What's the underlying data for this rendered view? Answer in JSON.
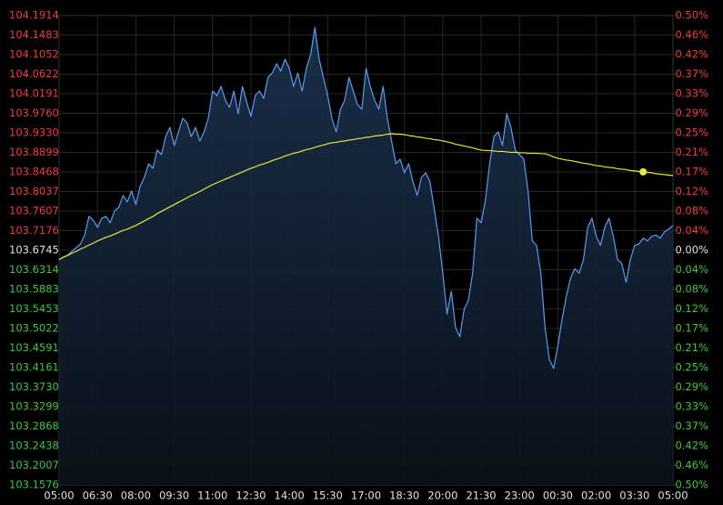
{
  "chart_data": {
    "type": "line",
    "categories": [
      "05:00",
      null,
      null,
      null,
      null,
      null,
      null,
      null,
      null,
      "06:30",
      null,
      null,
      null,
      null,
      null,
      null,
      null,
      null,
      "08:00",
      null,
      null,
      null,
      null,
      null,
      null,
      null,
      null,
      "09:30",
      null,
      null,
      null,
      null,
      null,
      null,
      null,
      null,
      "11:00",
      null,
      null,
      null,
      null,
      null,
      null,
      null,
      null,
      "12:30",
      null,
      null,
      null,
      null,
      null,
      null,
      null,
      null,
      "14:00",
      null,
      null,
      null,
      null,
      null,
      null,
      null,
      null,
      "15:30",
      null,
      null,
      null,
      null,
      null,
      null,
      null,
      null,
      "17:00",
      null,
      null,
      null,
      null,
      null,
      null,
      null,
      null,
      "18:30",
      null,
      null,
      null,
      null,
      null,
      null,
      null,
      null,
      "20:00",
      null,
      null,
      null,
      null,
      null,
      null,
      null,
      null,
      "21:30",
      null,
      null,
      null,
      null,
      null,
      null,
      null,
      null,
      "23:00",
      null,
      null,
      null,
      null,
      null,
      null,
      null,
      null,
      "00:30",
      null,
      null,
      null,
      null,
      null,
      null,
      null,
      null,
      "02:00",
      null,
      null,
      null,
      null,
      null,
      null,
      null,
      null,
      "03:30",
      null,
      null,
      null,
      null,
      null,
      null,
      null,
      null,
      "05:00"
    ],
    "series": [
      {
        "color": "#5b9cf0",
        "area": true,
        "values": [
          103.654,
          103.66,
          103.664,
          103.672,
          103.68,
          103.688,
          103.708,
          103.749,
          103.741,
          103.725,
          103.745,
          103.749,
          103.735,
          103.761,
          103.769,
          103.795,
          103.781,
          103.805,
          103.775,
          103.815,
          103.835,
          103.865,
          103.855,
          103.895,
          103.885,
          103.925,
          103.945,
          103.905,
          103.935,
          103.965,
          103.955,
          103.925,
          103.945,
          103.915,
          103.935,
          103.965,
          104.025,
          104.015,
          104.035,
          104.005,
          103.989,
          104.025,
          103.975,
          104.035,
          104.001,
          103.969,
          104.015,
          104.025,
          104.009,
          104.055,
          104.065,
          104.085,
          104.069,
          104.095,
          104.075,
          104.035,
          104.065,
          104.025,
          104.075,
          104.105,
          104.165,
          104.095,
          104.055,
          104.015,
          103.965,
          103.935,
          103.985,
          104.005,
          104.055,
          104.025,
          103.995,
          103.985,
          104.075,
          104.035,
          104.005,
          103.985,
          104.035,
          103.965,
          103.915,
          103.865,
          103.875,
          103.845,
          103.865,
          103.825,
          103.795,
          103.835,
          103.845,
          103.825,
          103.765,
          103.705,
          103.624,
          103.534,
          103.584,
          103.504,
          103.484,
          103.544,
          103.564,
          103.624,
          103.745,
          103.735,
          103.785,
          103.865,
          103.925,
          103.935,
          103.905,
          103.975,
          103.945,
          103.895,
          103.885,
          103.875,
          103.805,
          103.695,
          103.685,
          103.624,
          103.504,
          103.434,
          103.414,
          103.464,
          103.524,
          103.574,
          103.614,
          103.634,
          103.624,
          103.654,
          103.725,
          103.745,
          103.705,
          103.685,
          103.725,
          103.745,
          103.705,
          103.654,
          103.645,
          103.604,
          103.654,
          103.685,
          103.688,
          103.701,
          103.695,
          103.705,
          103.708,
          103.701,
          103.715,
          103.721,
          103.729
        ]
      },
      {
        "color": "#e8e83a",
        "values": [
          103.654,
          103.659,
          103.663,
          103.668,
          103.672,
          103.677,
          103.681,
          103.686,
          103.69,
          103.695,
          103.699,
          103.703,
          103.706,
          103.71,
          103.714,
          103.718,
          103.721,
          103.725,
          103.729,
          103.734,
          103.739,
          103.744,
          103.749,
          103.755,
          103.76,
          103.765,
          103.77,
          103.775,
          103.78,
          103.785,
          103.79,
          103.795,
          103.799,
          103.804,
          103.809,
          103.814,
          103.819,
          103.823,
          103.827,
          103.831,
          103.835,
          103.839,
          103.843,
          103.847,
          103.851,
          103.855,
          103.858,
          103.862,
          103.865,
          103.868,
          103.872,
          103.875,
          103.878,
          103.882,
          103.885,
          103.888,
          103.89,
          103.893,
          103.896,
          103.898,
          103.901,
          103.904,
          103.906,
          103.909,
          103.911,
          103.912,
          103.914,
          103.915,
          103.917,
          103.918,
          103.92,
          103.921,
          103.923,
          103.924,
          103.926,
          103.927,
          103.928,
          103.93,
          103.931,
          103.93,
          103.93,
          103.929,
          103.927,
          103.926,
          103.924,
          103.923,
          103.921,
          103.92,
          103.918,
          103.917,
          103.915,
          103.913,
          103.911,
          103.908,
          103.906,
          103.904,
          103.902,
          103.9,
          103.897,
          103.895,
          103.894,
          103.894,
          103.893,
          103.892,
          103.892,
          103.891,
          103.89,
          103.89,
          103.889,
          103.889,
          103.888,
          103.888,
          103.888,
          103.887,
          103.887,
          103.884,
          103.88,
          103.877,
          103.875,
          103.873,
          103.872,
          103.87,
          103.868,
          103.866,
          103.865,
          103.863,
          103.861,
          103.86,
          103.858,
          103.857,
          103.856,
          103.854,
          103.853,
          103.852,
          103.85,
          103.849,
          103.848,
          103.847,
          103.846,
          103.845,
          103.843,
          103.842,
          103.841,
          103.84,
          103.839
        ]
      }
    ],
    "ylim": [
      103.1576,
      104.1914
    ],
    "yticks": [
      104.1914,
      104.1483,
      104.1052,
      104.0622,
      104.0191,
      {
        "value": 103.976,
        "label": "103.9760"
      },
      {
        "value": 103.933,
        "label": "103.9330"
      },
      103.8899,
      103.8468,
      103.8037,
      103.7607,
      103.7176,
      103.6745,
      103.6314,
      103.5883,
      103.5453,
      103.5022,
      103.4591,
      103.4161,
      {
        "value": 103.373,
        "label": "103.3730"
      },
      103.3299,
      103.2868,
      103.2438,
      103.2007,
      103.1576
    ],
    "y2lim": [
      -0.4986,
      0.4986
    ],
    "y2ticks": [
      {
        "value": 0.4986,
        "label": "0.50%"
      },
      {
        "value": 0.4571,
        "label": "0.46%"
      },
      {
        "value": 0.4155,
        "label": "0.42%"
      },
      {
        "value": 0.374,
        "label": "0.37%"
      },
      {
        "value": 0.3324,
        "label": "0.33%"
      },
      {
        "value": 0.2909,
        "label": "0.29%"
      },
      {
        "value": 0.2493,
        "label": "0.25%"
      },
      {
        "value": 0.2078,
        "label": "0.21%"
      },
      {
        "value": 0.1662,
        "label": "0.17%"
      },
      {
        "value": 0.1247,
        "label": "0.12%"
      },
      {
        "value": 0.0831,
        "label": "0.08%"
      },
      {
        "value": 0.0416,
        "label": "0.04%"
      },
      {
        "value": 0,
        "label": "0.00%"
      },
      {
        "value": -0.0416,
        "label": "0.04%"
      },
      {
        "value": -0.0831,
        "label": "0.08%"
      },
      {
        "value": -0.1247,
        "label": "0.12%"
      },
      {
        "value": -0.1662,
        "label": "0.17%"
      },
      {
        "value": -0.2078,
        "label": "0.21%"
      },
      {
        "value": -0.2493,
        "label": "0.25%"
      },
      {
        "value": -0.2909,
        "label": "0.29%"
      },
      {
        "value": -0.3324,
        "label": "0.33%"
      },
      {
        "value": -0.374,
        "label": "0.37%"
      },
      {
        "value": -0.4155,
        "label": "0.42%"
      },
      {
        "value": -0.4571,
        "label": "0.46%"
      },
      {
        "value": -0.4986,
        "label": "0.50%"
      }
    ],
    "grid": true,
    "up_color": "#f03c3c",
    "down_color": "#3cc83c",
    "flat_color": "#e0e0e0"
  }
}
